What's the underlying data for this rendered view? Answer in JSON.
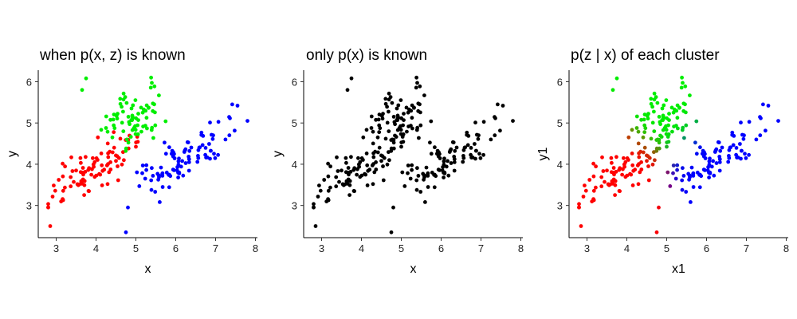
{
  "chart_data": [
    {
      "type": "scatter",
      "title": "when p(x, z) is known",
      "xlabel": "x",
      "ylabel": "y",
      "xlim": [
        2.55,
        8.05
      ],
      "ylim": [
        2.22,
        6.28
      ],
      "xticks": [
        3,
        4,
        5,
        6,
        7,
        8
      ],
      "yticks": [
        3,
        4,
        5,
        6
      ],
      "grid": false,
      "legend": "none",
      "series_colors": [
        "#ff0000",
        "#00ee00",
        "#0000ff"
      ]
    },
    {
      "type": "scatter",
      "title": "only p(x) is known",
      "xlabel": "x",
      "ylabel": "y",
      "xlim": [
        2.55,
        8.05
      ],
      "ylim": [
        2.22,
        6.28
      ],
      "xticks": [
        3,
        4,
        5,
        6,
        7,
        8
      ],
      "yticks": [
        3,
        4,
        5,
        6
      ],
      "grid": false,
      "legend": "none",
      "series_colors": [
        "#000000"
      ]
    },
    {
      "type": "scatter",
      "title": "p(z | x) of each cluster",
      "xlabel": "x1",
      "ylabel": "y1",
      "xlim": [
        2.55,
        8.05
      ],
      "ylim": [
        2.22,
        6.28
      ],
      "xticks": [
        3,
        4,
        5,
        6,
        7,
        8
      ],
      "yticks": [
        3,
        4,
        5,
        6
      ],
      "grid": false,
      "legend": "none",
      "series_colors": [
        "#ff0000",
        "#00ee00",
        "#0000ff"
      ]
    }
  ]
}
